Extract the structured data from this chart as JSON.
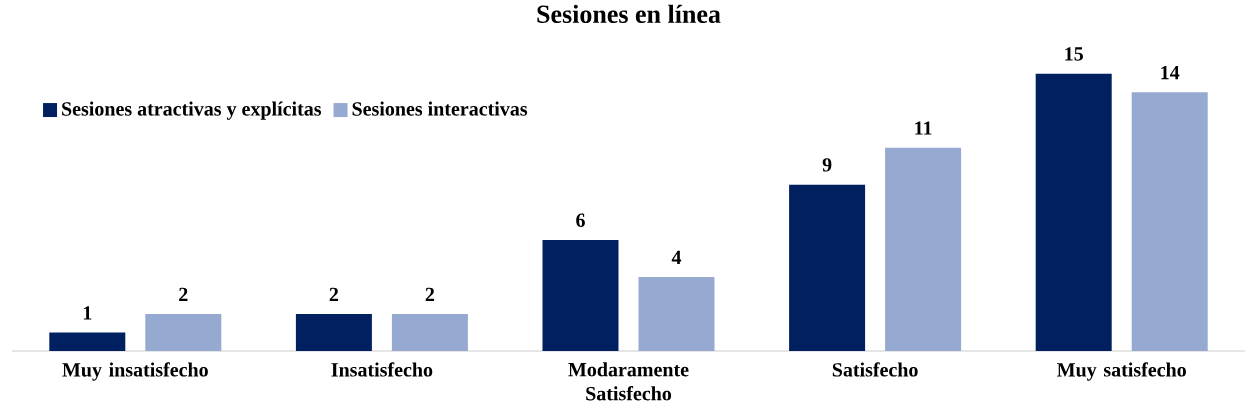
{
  "chart_data": {
    "type": "bar",
    "title": "Sesiones en línea",
    "categories": [
      "Muy insatisfecho",
      "Insatisfecho",
      "Modaramente Satisfecho",
      "Satisfecho",
      "Muy satisfecho"
    ],
    "series": [
      {
        "name": "Sesiones atractivas y explícitas",
        "color": "#002060",
        "values": [
          1,
          2,
          6,
          9,
          15
        ]
      },
      {
        "name": "Sesiones interactivas",
        "color": "#95A9D1",
        "values": [
          2,
          2,
          4,
          11,
          14
        ]
      }
    ],
    "data_labels": true,
    "legend": "top left"
  }
}
